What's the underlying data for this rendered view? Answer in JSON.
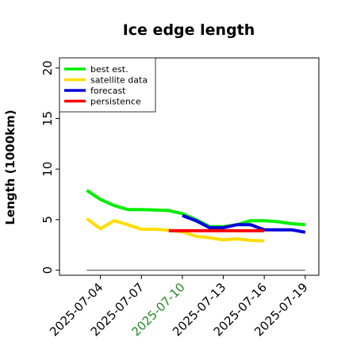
{
  "chart_data": {
    "type": "line",
    "title": "Ice edge length",
    "xlabel": "",
    "ylabel": "Length (1000km)",
    "ylim": [
      -0.5,
      21
    ],
    "y_ticks": [
      0,
      5,
      10,
      15,
      20
    ],
    "x_range": [
      "2025-07-01",
      "2025-07-20"
    ],
    "x_ticks": [
      {
        "date": "2025-07-04",
        "label": "2025-07-04",
        "color": "#000000"
      },
      {
        "date": "2025-07-07",
        "label": "2025-07-07",
        "color": "#000000"
      },
      {
        "date": "2025-07-10",
        "label": "2025-07-10",
        "color": "#228b22"
      },
      {
        "date": "2025-07-13",
        "label": "2025-07-13",
        "color": "#000000"
      },
      {
        "date": "2025-07-16",
        "label": "2025-07-16",
        "color": "#000000"
      },
      {
        "date": "2025-07-19",
        "label": "2025-07-19",
        "color": "#000000"
      }
    ],
    "legend_position": "top-left",
    "grid": false,
    "series": [
      {
        "name": "best est.",
        "color": "#00ee00",
        "x": [
          "2025-07-03",
          "2025-07-04",
          "2025-07-05",
          "2025-07-06",
          "2025-07-07",
          "2025-07-08",
          "2025-07-09",
          "2025-07-10",
          "2025-07-11",
          "2025-07-12",
          "2025-07-13",
          "2025-07-14",
          "2025-07-15",
          "2025-07-16",
          "2025-07-17",
          "2025-07-18",
          "2025-07-19"
        ],
        "y": [
          7.9,
          7.0,
          6.4,
          6.0,
          6.0,
          5.95,
          5.9,
          5.6,
          5.0,
          4.3,
          4.3,
          4.5,
          4.9,
          4.9,
          4.8,
          4.6,
          4.5
        ]
      },
      {
        "name": "satellite data",
        "color": "#ffdd00",
        "x": [
          "2025-07-03",
          "2025-07-04",
          "2025-07-05",
          "2025-07-06",
          "2025-07-07",
          "2025-07-08",
          "2025-07-09",
          "2025-07-10",
          "2025-07-11",
          "2025-07-12",
          "2025-07-13",
          "2025-07-14",
          "2025-07-15",
          "2025-07-16"
        ],
        "y": [
          5.1,
          4.1,
          4.9,
          4.5,
          4.05,
          4.05,
          3.95,
          3.8,
          3.35,
          3.2,
          3.0,
          3.1,
          2.95,
          2.9
        ]
      },
      {
        "name": "forecast",
        "color": "#0000dd",
        "x": [
          "2025-07-10",
          "2025-07-11",
          "2025-07-12",
          "2025-07-13",
          "2025-07-14",
          "2025-07-15",
          "2025-07-16",
          "2025-07-17",
          "2025-07-18",
          "2025-07-19"
        ],
        "y": [
          5.4,
          4.9,
          4.2,
          4.2,
          4.5,
          4.5,
          4.0,
          4.0,
          4.0,
          3.75
        ]
      },
      {
        "name": "persistence",
        "color": "#ff0000",
        "x": [
          "2025-07-09",
          "2025-07-16"
        ],
        "y": [
          3.9,
          3.9
        ]
      },
      {
        "name": "",
        "color": "#666666",
        "x": [
          "2025-07-03",
          "2025-07-19"
        ],
        "y": [
          0,
          0
        ],
        "thin": true
      }
    ]
  }
}
